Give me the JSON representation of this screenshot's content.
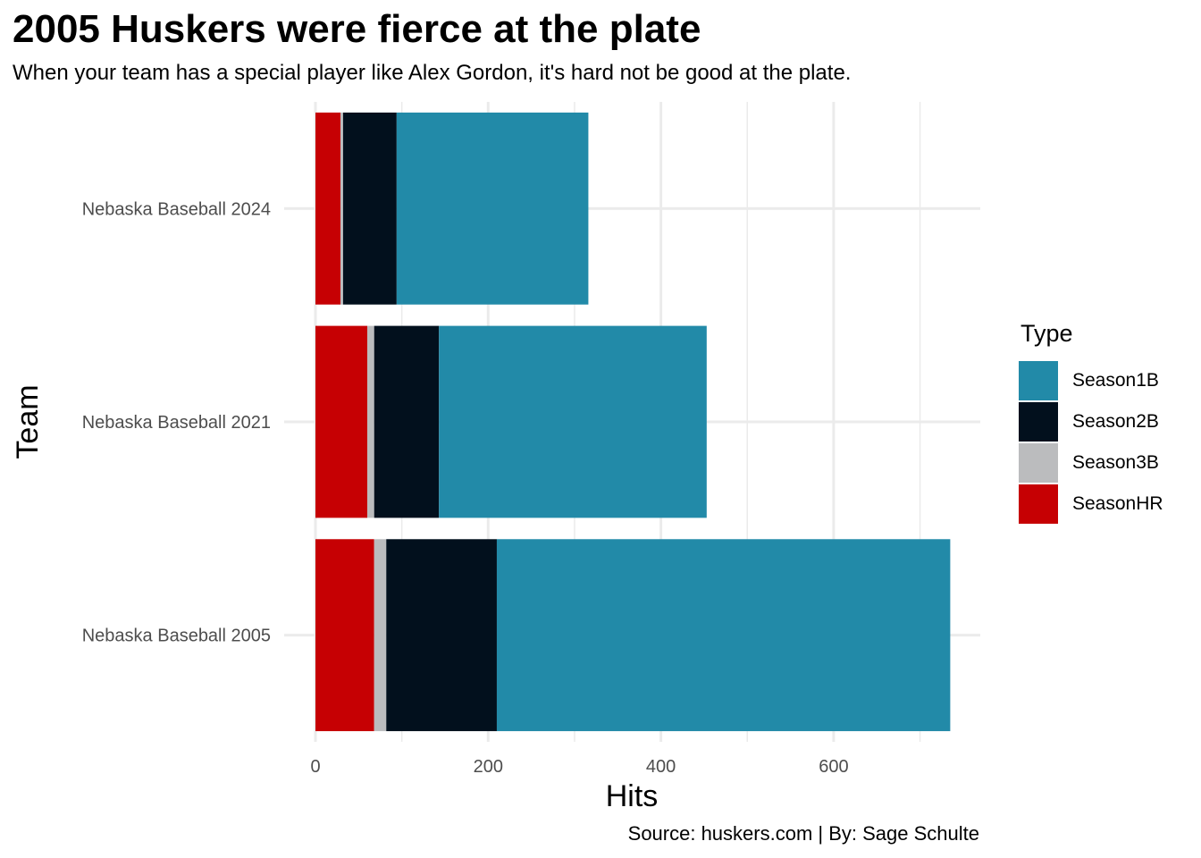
{
  "title": "2005 Huskers were fierce at the plate",
  "subtitle": "When your team has a special player like Alex Gordon, it's hard not be good at the plate.",
  "caption": "Source: huskers.com | By: Sage Schulte",
  "chart_data": {
    "type": "bar",
    "orientation": "horizontal",
    "stacked": true,
    "title": "2005 Huskers were fierce at the plate",
    "subtitle": "When your team has a special player like Alex Gordon, it's hard not be good at the plate.",
    "xlabel": "Hits",
    "ylabel": "Team",
    "xlim": [
      0,
      767
    ],
    "xticks": [
      0,
      200,
      400,
      600
    ],
    "xtick_labels": [
      "0",
      "200",
      "400",
      "600"
    ],
    "grid": true,
    "legend_title": "Type",
    "legend_position": "right",
    "categories": [
      "Nebaska Baseball 2024",
      "Nebaska Baseball 2021",
      "Nebaska Baseball 2005"
    ],
    "series": [
      {
        "name": "SeasonHR",
        "color": "#c60003",
        "values": [
          29,
          60,
          68
        ]
      },
      {
        "name": "Season3B",
        "color": "#bbbcbe",
        "values": [
          3,
          8,
          14
        ]
      },
      {
        "name": "Season2B",
        "color": "#02101d",
        "values": [
          62,
          75,
          128
        ]
      },
      {
        "name": "Season1B",
        "color": "#228aa8",
        "values": [
          222,
          310,
          525
        ]
      }
    ],
    "legend_order": [
      "Season1B",
      "Season2B",
      "Season3B",
      "SeasonHR"
    ]
  }
}
